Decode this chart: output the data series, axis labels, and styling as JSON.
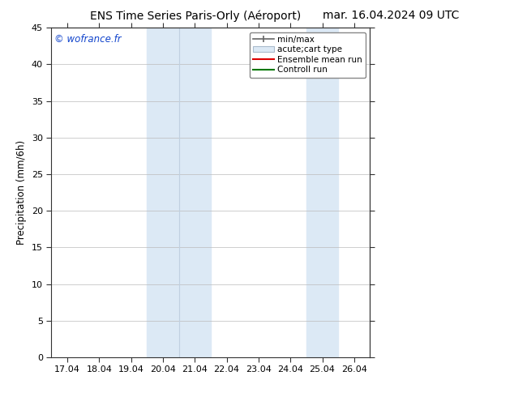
{
  "title_left": "ENS Time Series Paris-Orly (Aéroport)",
  "title_right": "mar. 16.04.2024 09 UTC",
  "ylabel": "Precipitation (mm/6h)",
  "watermark": "© wofrance.fr",
  "ylim": [
    0,
    45
  ],
  "yticks": [
    0,
    5,
    10,
    15,
    20,
    25,
    30,
    35,
    40,
    45
  ],
  "xtick_labels": [
    "17.04",
    "18.04",
    "19.04",
    "20.04",
    "21.04",
    "22.04",
    "23.04",
    "24.04",
    "25.04",
    "26.04"
  ],
  "xtick_positions": [
    0,
    1,
    2,
    3,
    4,
    5,
    6,
    7,
    8,
    9
  ],
  "xlim": [
    -0.5,
    9.5
  ],
  "shaded_bands": [
    {
      "xmin": 3.0,
      "xmax": 5.0
    },
    {
      "xmin": 8.0,
      "xmax": 9.0
    }
  ],
  "band_dividers": [
    4.0
  ],
  "band_color": "#dce9f5",
  "background_color": "#ffffff",
  "grid_color": "#bbbbbb",
  "legend_items": [
    {
      "label": "min/max",
      "color": "#666666",
      "type": "hline"
    },
    {
      "label": "acute;cart type",
      "color": "#dce9f5",
      "type": "patch"
    },
    {
      "label": "Ensemble mean run",
      "color": "#dd0000",
      "type": "line"
    },
    {
      "label": "Controll run",
      "color": "#007700",
      "type": "line"
    }
  ],
  "title_fontsize": 10,
  "tick_fontsize": 8,
  "ylabel_fontsize": 8.5,
  "watermark_fontsize": 8.5,
  "watermark_color": "#1144cc",
  "legend_fontsize": 7.5,
  "right_spine_ticks": true
}
